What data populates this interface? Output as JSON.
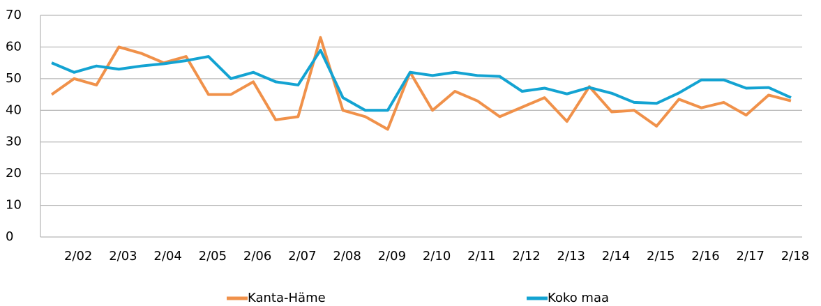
{
  "chart_data": {
    "type": "line",
    "categories": [
      null,
      "2/02",
      null,
      "2/03",
      null,
      "2/04",
      null,
      "2/05",
      null,
      "2/06",
      null,
      "2/07",
      null,
      "2/08",
      null,
      "2/09",
      null,
      "2/10",
      null,
      "2/11",
      null,
      "2/12",
      null,
      "2/13",
      null,
      "2/14",
      null,
      "2/15",
      null,
      "2/16",
      null,
      "2/17",
      null,
      "2/18"
    ],
    "series": [
      {
        "name": "Kanta-Häme",
        "color": "#f0914a",
        "values": [
          45,
          50,
          48,
          60,
          58,
          55,
          57,
          45,
          45,
          49,
          37,
          38,
          63,
          40,
          38,
          34,
          52,
          40,
          46,
          43,
          38,
          41,
          44,
          36.5,
          47.5,
          39.5,
          40,
          35,
          43.5,
          40.8,
          42.5,
          38.5,
          44.8,
          43
        ]
      },
      {
        "name": "Koko maa",
        "color": "#13a3d2",
        "values": [
          55,
          52,
          54,
          53,
          54,
          54.7,
          55.7,
          57,
          50,
          52,
          49,
          48,
          59,
          44,
          40,
          40,
          52,
          51,
          52,
          51,
          50.7,
          46,
          47,
          45.2,
          47.2,
          45.4,
          42.5,
          42.2,
          45.5,
          49.6,
          49.6,
          47,
          47.2,
          44
        ]
      }
    ],
    "ylim": [
      0,
      70
    ],
    "yticks": [
      0,
      10,
      20,
      30,
      40,
      50,
      60,
      70
    ],
    "grid": true,
    "legend": "bottom"
  }
}
